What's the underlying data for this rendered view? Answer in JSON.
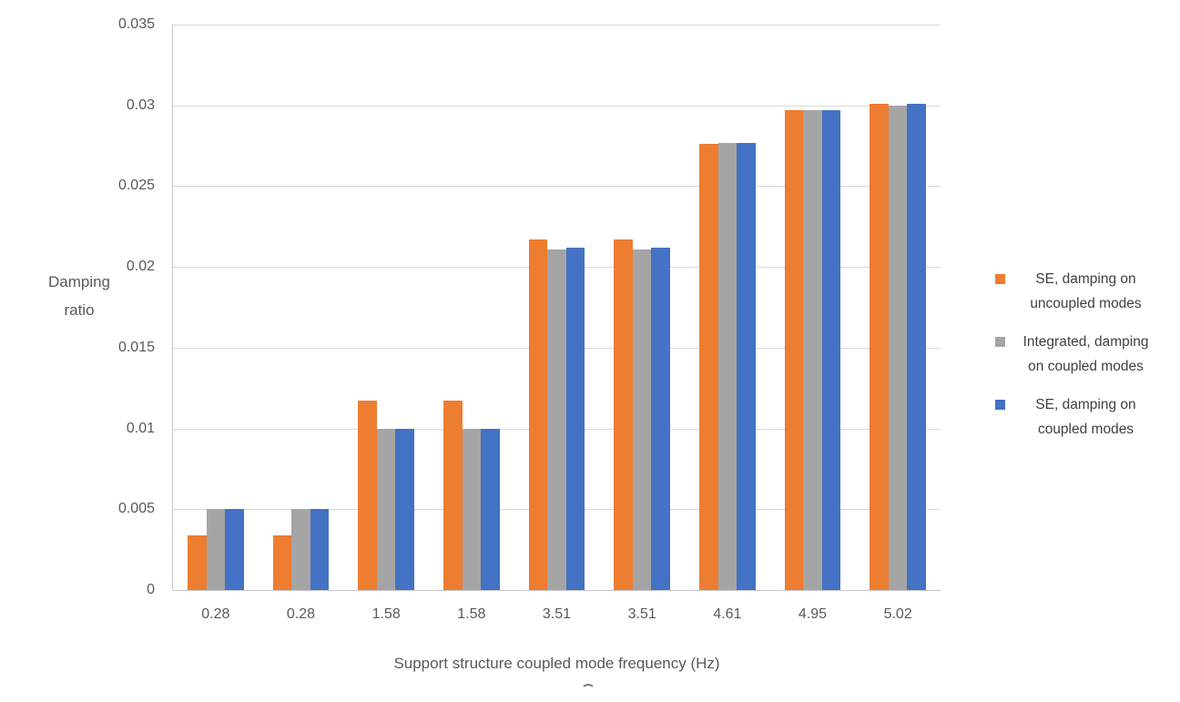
{
  "chart_data": {
    "type": "bar",
    "title": "",
    "xlabel": "Support structure coupled mode frequency (Hz)",
    "ylabel": "Damping ratio",
    "ylabel_display": "Damping\nratio",
    "categories": [
      "0.28",
      "0.28",
      "1.58",
      "1.58",
      "3.51",
      "3.51",
      "4.61",
      "4.95",
      "5.02"
    ],
    "series": [
      {
        "name": "SE, damping on uncoupled modes",
        "label_lines": [
          "SE, damping on",
          "uncoupled modes"
        ],
        "color": "#ED7D31",
        "values": [
          0.0034,
          0.0034,
          0.0117,
          0.0117,
          0.0217,
          0.0217,
          0.0276,
          0.0297,
          0.0301
        ]
      },
      {
        "name": "Integrated, damping on coupled modes",
        "label_lines": [
          "Integrated, damping",
          "on coupled modes"
        ],
        "color": "#A5A5A5",
        "values": [
          0.005,
          0.005,
          0.01,
          0.01,
          0.0211,
          0.0211,
          0.0277,
          0.0297,
          0.03
        ]
      },
      {
        "name": "SE, damping on coupled modes",
        "label_lines": [
          "SE, damping on",
          "coupled modes"
        ],
        "color": "#4472C4",
        "values": [
          0.005,
          0.005,
          0.01,
          0.01,
          0.0212,
          0.0212,
          0.0277,
          0.0297,
          0.0301
        ]
      }
    ],
    "ylim": [
      0,
      0.035
    ],
    "ytick_step": 0.005,
    "ytick_labels": [
      "0",
      "0.005",
      "0.01",
      "0.015",
      "0.02",
      "0.025",
      "0.03",
      "0.035"
    ],
    "grid": true,
    "legend_position": "right"
  },
  "colors": {
    "background": "#FFFFFF",
    "gridline": "#D9D9D9",
    "axis_line": "#C6C6C6",
    "tick_text": "#595959",
    "axis_title_text": "#595959",
    "legend_text": "#404040"
  }
}
